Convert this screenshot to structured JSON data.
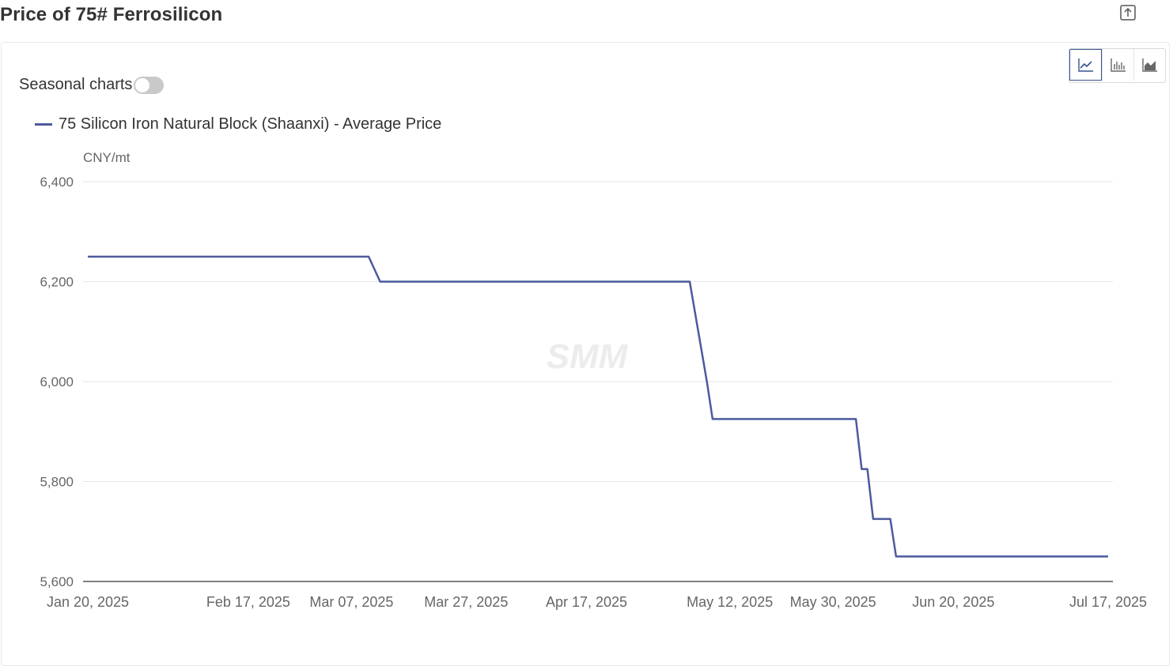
{
  "page": {
    "title": "Price of 75# Ferrosilicon"
  },
  "controls": {
    "seasonal_label": "Seasonal charts",
    "seasonal_on": false,
    "chart_types": [
      "line",
      "bar",
      "area"
    ],
    "active_chart_type": "line"
  },
  "watermark": "SMM",
  "colors": {
    "series": "#4c5a9e",
    "grid": "#e6e6e6",
    "axis": "#666666"
  },
  "chart_data": {
    "type": "line",
    "unit_label": "CNY/mt",
    "ylim": [
      5600,
      6400
    ],
    "y_ticks": [
      "6,400",
      "6,200",
      "6,000",
      "5,800",
      "5,600"
    ],
    "y_tick_values": [
      6400,
      6200,
      6000,
      5800,
      5600
    ],
    "x_tick_labels": [
      "Jan 20, 2025",
      "Feb 17, 2025",
      "Mar 07, 2025",
      "Mar 27, 2025",
      "Apr 17, 2025",
      "May 12, 2025",
      "May 30, 2025",
      "Jun 20, 2025",
      "Jul 17, 2025"
    ],
    "x_tick_dates": [
      "2025-01-20",
      "2025-02-17",
      "2025-03-07",
      "2025-03-27",
      "2025-04-17",
      "2025-05-12",
      "2025-05-30",
      "2025-06-20",
      "2025-07-17"
    ],
    "grid": true,
    "legend_position": "top-left",
    "series": [
      {
        "name": "75 Silicon Iron Natural Block (Shaanxi) - Average Price",
        "points": [
          [
            "2025-01-20",
            6250
          ],
          [
            "2025-03-10",
            6250
          ],
          [
            "2025-03-12",
            6200
          ],
          [
            "2025-05-05",
            6200
          ],
          [
            "2025-05-08",
            6000
          ],
          [
            "2025-05-09",
            5925
          ],
          [
            "2025-06-03",
            5925
          ],
          [
            "2025-06-04",
            5825
          ],
          [
            "2025-06-05",
            5825
          ],
          [
            "2025-06-06",
            5725
          ],
          [
            "2025-06-09",
            5725
          ],
          [
            "2025-06-10",
            5650
          ],
          [
            "2025-07-17",
            5650
          ]
        ]
      }
    ]
  }
}
